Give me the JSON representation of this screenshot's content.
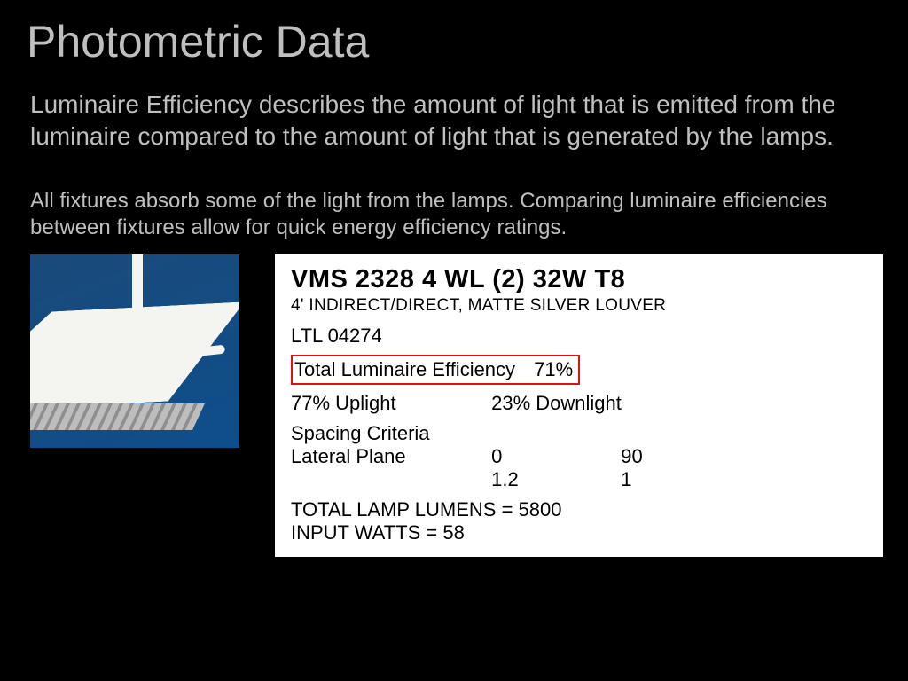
{
  "page": {
    "background_color": "#000000",
    "title_color": "#bfbfbf",
    "body_text_color": "#bfbfbf",
    "title_fontsize": 50,
    "para1_fontsize": 28,
    "para2_fontsize": 24
  },
  "title": "Photometric Data",
  "para1": "Luminaire Efficiency describes the amount of light that is emitted from the luminaire compared to the amount of light that is generated by the lamps.",
  "para2": "All fixtures absorb some of the light from the lamps. Comparing luminaire efficiencies between fixtures allow for quick energy efficiency ratings.",
  "fixture_photo": {
    "description": "white indirect/direct pendant luminaire with matte silver louver against blue background",
    "bg_gradient_top": "#1a4a7a",
    "bg_gradient_bottom": "#0e4e8c",
    "fixture_color": "#f4f4f0",
    "louver_color": "#bdbdbd"
  },
  "datasheet": {
    "background_color": "#ffffff",
    "text_color": "#000000",
    "highlight_border_color": "#e01010",
    "font_family": "Arial Narrow",
    "title_fontsize": 29,
    "body_fontsize": 22,
    "model": "VMS 2328 4 WL (2) 32W T8",
    "description": "4' INDIRECT/DIRECT, MATTE SILVER LOUVER",
    "catalog": "LTL 04274",
    "efficiency_label": "Total Luminaire Efficiency",
    "efficiency_value": "71%",
    "uplight_label": "77% Uplight",
    "downlight_label": "23% Downlight",
    "spacing_label": "Spacing Criteria",
    "spacing_row_label": "Lateral Plane",
    "spacing_cols": [
      "0",
      "90"
    ],
    "spacing_vals": [
      "1.2",
      "1"
    ],
    "total_lumens": "TOTAL LAMP LUMENS = 5800",
    "input_watts": "INPUT WATTS = 58"
  }
}
